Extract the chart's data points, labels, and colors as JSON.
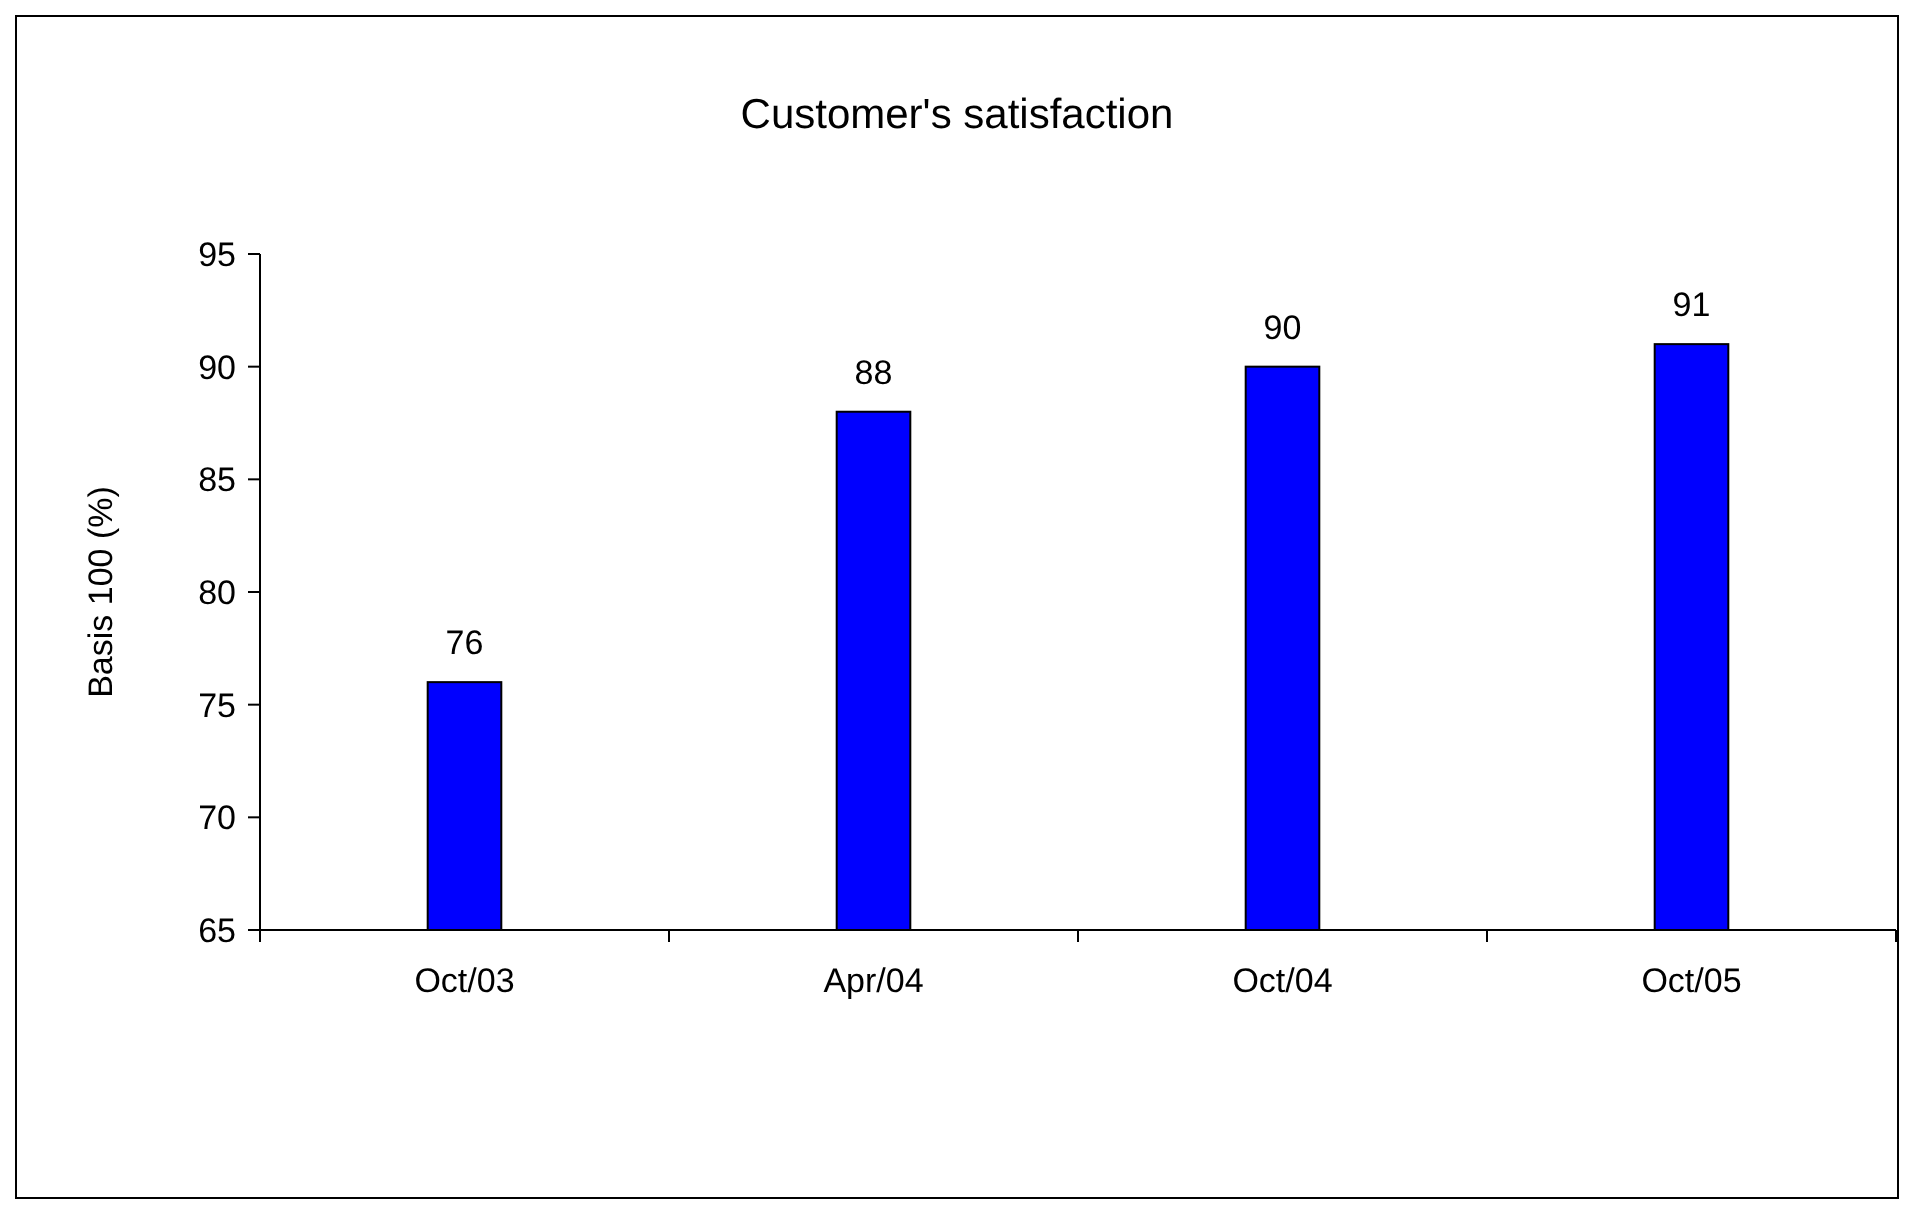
{
  "chart_data": {
    "type": "bar",
    "title": "Customer's satisfaction",
    "ylabel": "Basis 100 (%)",
    "categories": [
      "Oct/03",
      "Apr/04",
      "Oct/04",
      "Oct/05"
    ],
    "values": [
      76,
      88,
      90,
      91
    ],
    "color": "#0000ff",
    "ylim": [
      65,
      95
    ],
    "yticks": [
      65,
      70,
      75,
      80,
      85,
      90,
      95
    ],
    "grid": false,
    "data_labels": true
  }
}
